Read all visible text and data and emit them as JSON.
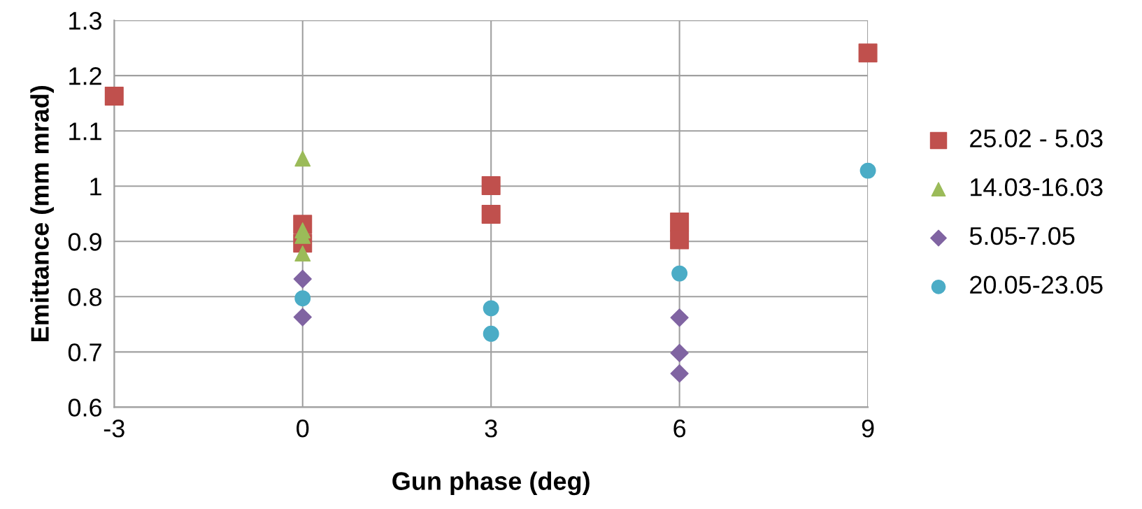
{
  "chart_data": {
    "type": "scatter",
    "xlabel": "Gun phase (deg)",
    "ylabel": "Emittance (mm mrad)",
    "xlim": [
      -3,
      9
    ],
    "xticks": [
      -3,
      0,
      3,
      6,
      9
    ],
    "ylim": [
      0.6,
      1.3
    ],
    "yticks": [
      0.6,
      0.7,
      0.8,
      0.9,
      1,
      1.1,
      1.2,
      1.3
    ],
    "grid": true,
    "legend": "right",
    "series": [
      {
        "name": "25.02 - 5.03",
        "color": "#c0504d",
        "marker": "square",
        "x": [
          -3,
          0,
          0,
          3,
          3,
          6,
          6,
          9
        ],
        "values": [
          1.163,
          0.931,
          0.897,
          1.001,
          0.949,
          0.935,
          0.903,
          1.241
        ]
      },
      {
        "name": "14.03-16.03",
        "color": "#9bbb59",
        "marker": "triangle",
        "x": [
          0,
          0,
          0,
          0
        ],
        "values": [
          1.05,
          0.92,
          0.91,
          0.878
        ]
      },
      {
        "name": "5.05-7.05",
        "color": "#8064a2",
        "marker": "diamond",
        "x": [
          0,
          0,
          6,
          6,
          6
        ],
        "values": [
          0.832,
          0.763,
          0.762,
          0.698,
          0.661
        ]
      },
      {
        "name": "20.05-23.05",
        "color": "#4bacc6",
        "marker": "circle",
        "x": [
          0,
          3,
          3,
          6,
          9
        ],
        "values": [
          0.797,
          0.779,
          0.733,
          0.842,
          1.028
        ]
      }
    ]
  }
}
